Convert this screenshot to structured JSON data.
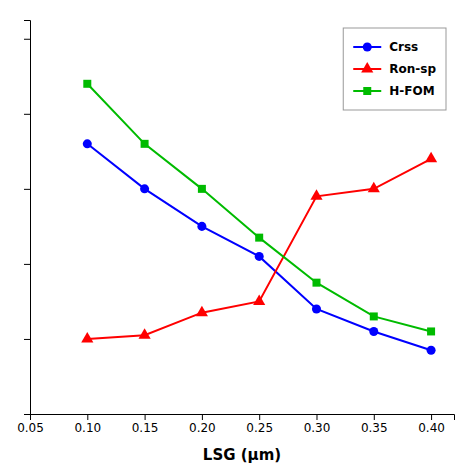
{
  "chart_data": {
    "type": "line",
    "x": [
      0.1,
      0.15,
      0.2,
      0.25,
      0.3,
      0.35,
      0.4
    ],
    "series": [
      {
        "name": "Crss",
        "color": "#0000ff",
        "marker": "circle",
        "values": [
          0.72,
          0.6,
          0.5,
          0.42,
          0.28,
          0.22,
          0.17
        ]
      },
      {
        "name": "Ron-sp",
        "color": "#ff0000",
        "marker": "triangle",
        "values": [
          0.2,
          0.21,
          0.27,
          0.3,
          0.58,
          0.6,
          0.68
        ]
      },
      {
        "name": "H-FOM",
        "color": "#00bb00",
        "marker": "square",
        "values": [
          0.88,
          0.72,
          0.6,
          0.47,
          0.35,
          0.26,
          0.22
        ]
      }
    ],
    "xlabel": "LSG (μm)",
    "xlim": [
      0.05,
      0.42
    ],
    "ylim": [
      0.0,
      1.05
    ],
    "xticks": [
      0.05,
      {
        "value": 0.1,
        "label": "0.10"
      },
      0.15,
      {
        "value": 0.2,
        "label": "0.20"
      },
      0.25,
      {
        "value": 0.3,
        "label": "0.30"
      },
      0.35,
      {
        "value": 0.4,
        "label": "0.40"
      }
    ],
    "yticks": [
      0,
      0.2,
      0.4,
      0.6,
      0.8,
      1.0
    ],
    "tick_labels": "x",
    "grid": false,
    "legend": "upper right"
  }
}
